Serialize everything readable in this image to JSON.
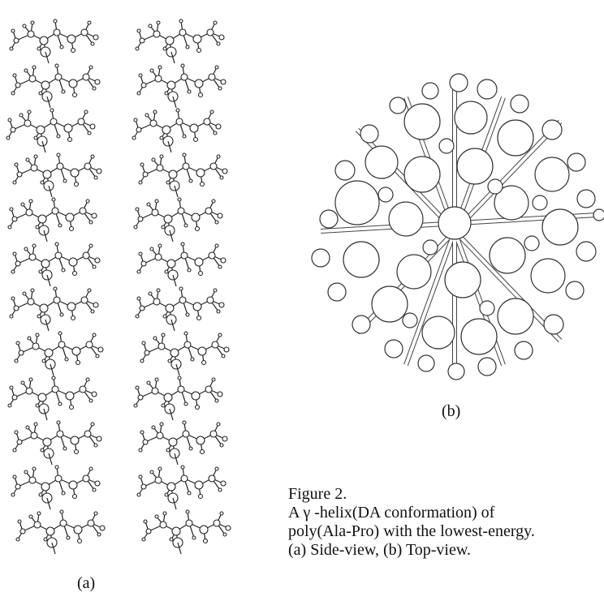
{
  "figure": {
    "panels": [
      {
        "label": "(a)"
      },
      {
        "label": "(b)"
      }
    ],
    "caption": {
      "title": "Figure 2.",
      "lines": [
        "A γ -helix(DA conformation) of",
        "poly(Ala-Pro) with the lowest-energy.",
        "(a) Side-view, (b) Top-view."
      ]
    }
  }
}
